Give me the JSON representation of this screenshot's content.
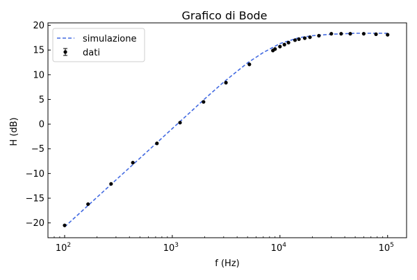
{
  "chart_data": {
    "type": "line",
    "title": "Grafico di Bode",
    "xlabel": "f (Hz)",
    "ylabel": "H (dB)",
    "xscale": "log",
    "xlim": [
      70,
      150000
    ],
    "ylim": [
      -23,
      20.5
    ],
    "xticks": [
      {
        "value": 100,
        "base": "10",
        "exp": "2"
      },
      {
        "value": 1000,
        "base": "10",
        "exp": "3"
      },
      {
        "value": 10000,
        "base": "10",
        "exp": "4"
      },
      {
        "value": 100000,
        "base": "10",
        "exp": "5"
      }
    ],
    "yticks": [
      20,
      15,
      10,
      5,
      0,
      -5,
      -10,
      -15,
      -20
    ],
    "ytick_labels": [
      "20",
      "15",
      "10",
      "5",
      "0",
      "−5",
      "−10",
      "−15",
      "−20"
    ],
    "grid": false,
    "legend": {
      "position": "top-left",
      "entries": [
        {
          "label": "simulazione",
          "style": "dashed-line"
        },
        {
          "label": "dati",
          "style": "marker-errorbar"
        }
      ]
    },
    "series": [
      {
        "name": "simulazione",
        "style": "dashed",
        "color": "#4169e1",
        "x": [
          100,
          150,
          200,
          300,
          500,
          700,
          1000,
          1500,
          2000,
          3000,
          5000,
          7000,
          10000,
          15000,
          20000,
          30000,
          50000,
          70000,
          100000
        ],
        "y": [
          -20.8,
          -17.3,
          -14.8,
          -11.3,
          -6.9,
          -4.0,
          -0.9,
          2.6,
          5.1,
          8.5,
          12.4,
          14.5,
          16.3,
          17.5,
          17.9,
          18.2,
          18.4,
          18.4,
          18.4
        ]
      },
      {
        "name": "dati",
        "style": "markers",
        "color": "#000000",
        "x": [
          100,
          165,
          270,
          430,
          720,
          1180,
          1950,
          3150,
          5200,
          8600,
          9000,
          10000,
          11000,
          12000,
          13800,
          15000,
          17000,
          19000,
          23000,
          30000,
          37000,
          45000,
          60000,
          78000,
          100000
        ],
        "y": [
          -20.5,
          -16.2,
          -12.1,
          -7.8,
          -3.9,
          0.3,
          4.5,
          8.4,
          12.1,
          14.9,
          15.2,
          15.7,
          16.1,
          16.5,
          17.0,
          17.2,
          17.4,
          17.6,
          17.9,
          18.3,
          18.3,
          18.3,
          18.3,
          18.2,
          18.1
        ]
      }
    ]
  },
  "colors": {
    "simulazione": "#4169e1",
    "dati": "#000000"
  }
}
